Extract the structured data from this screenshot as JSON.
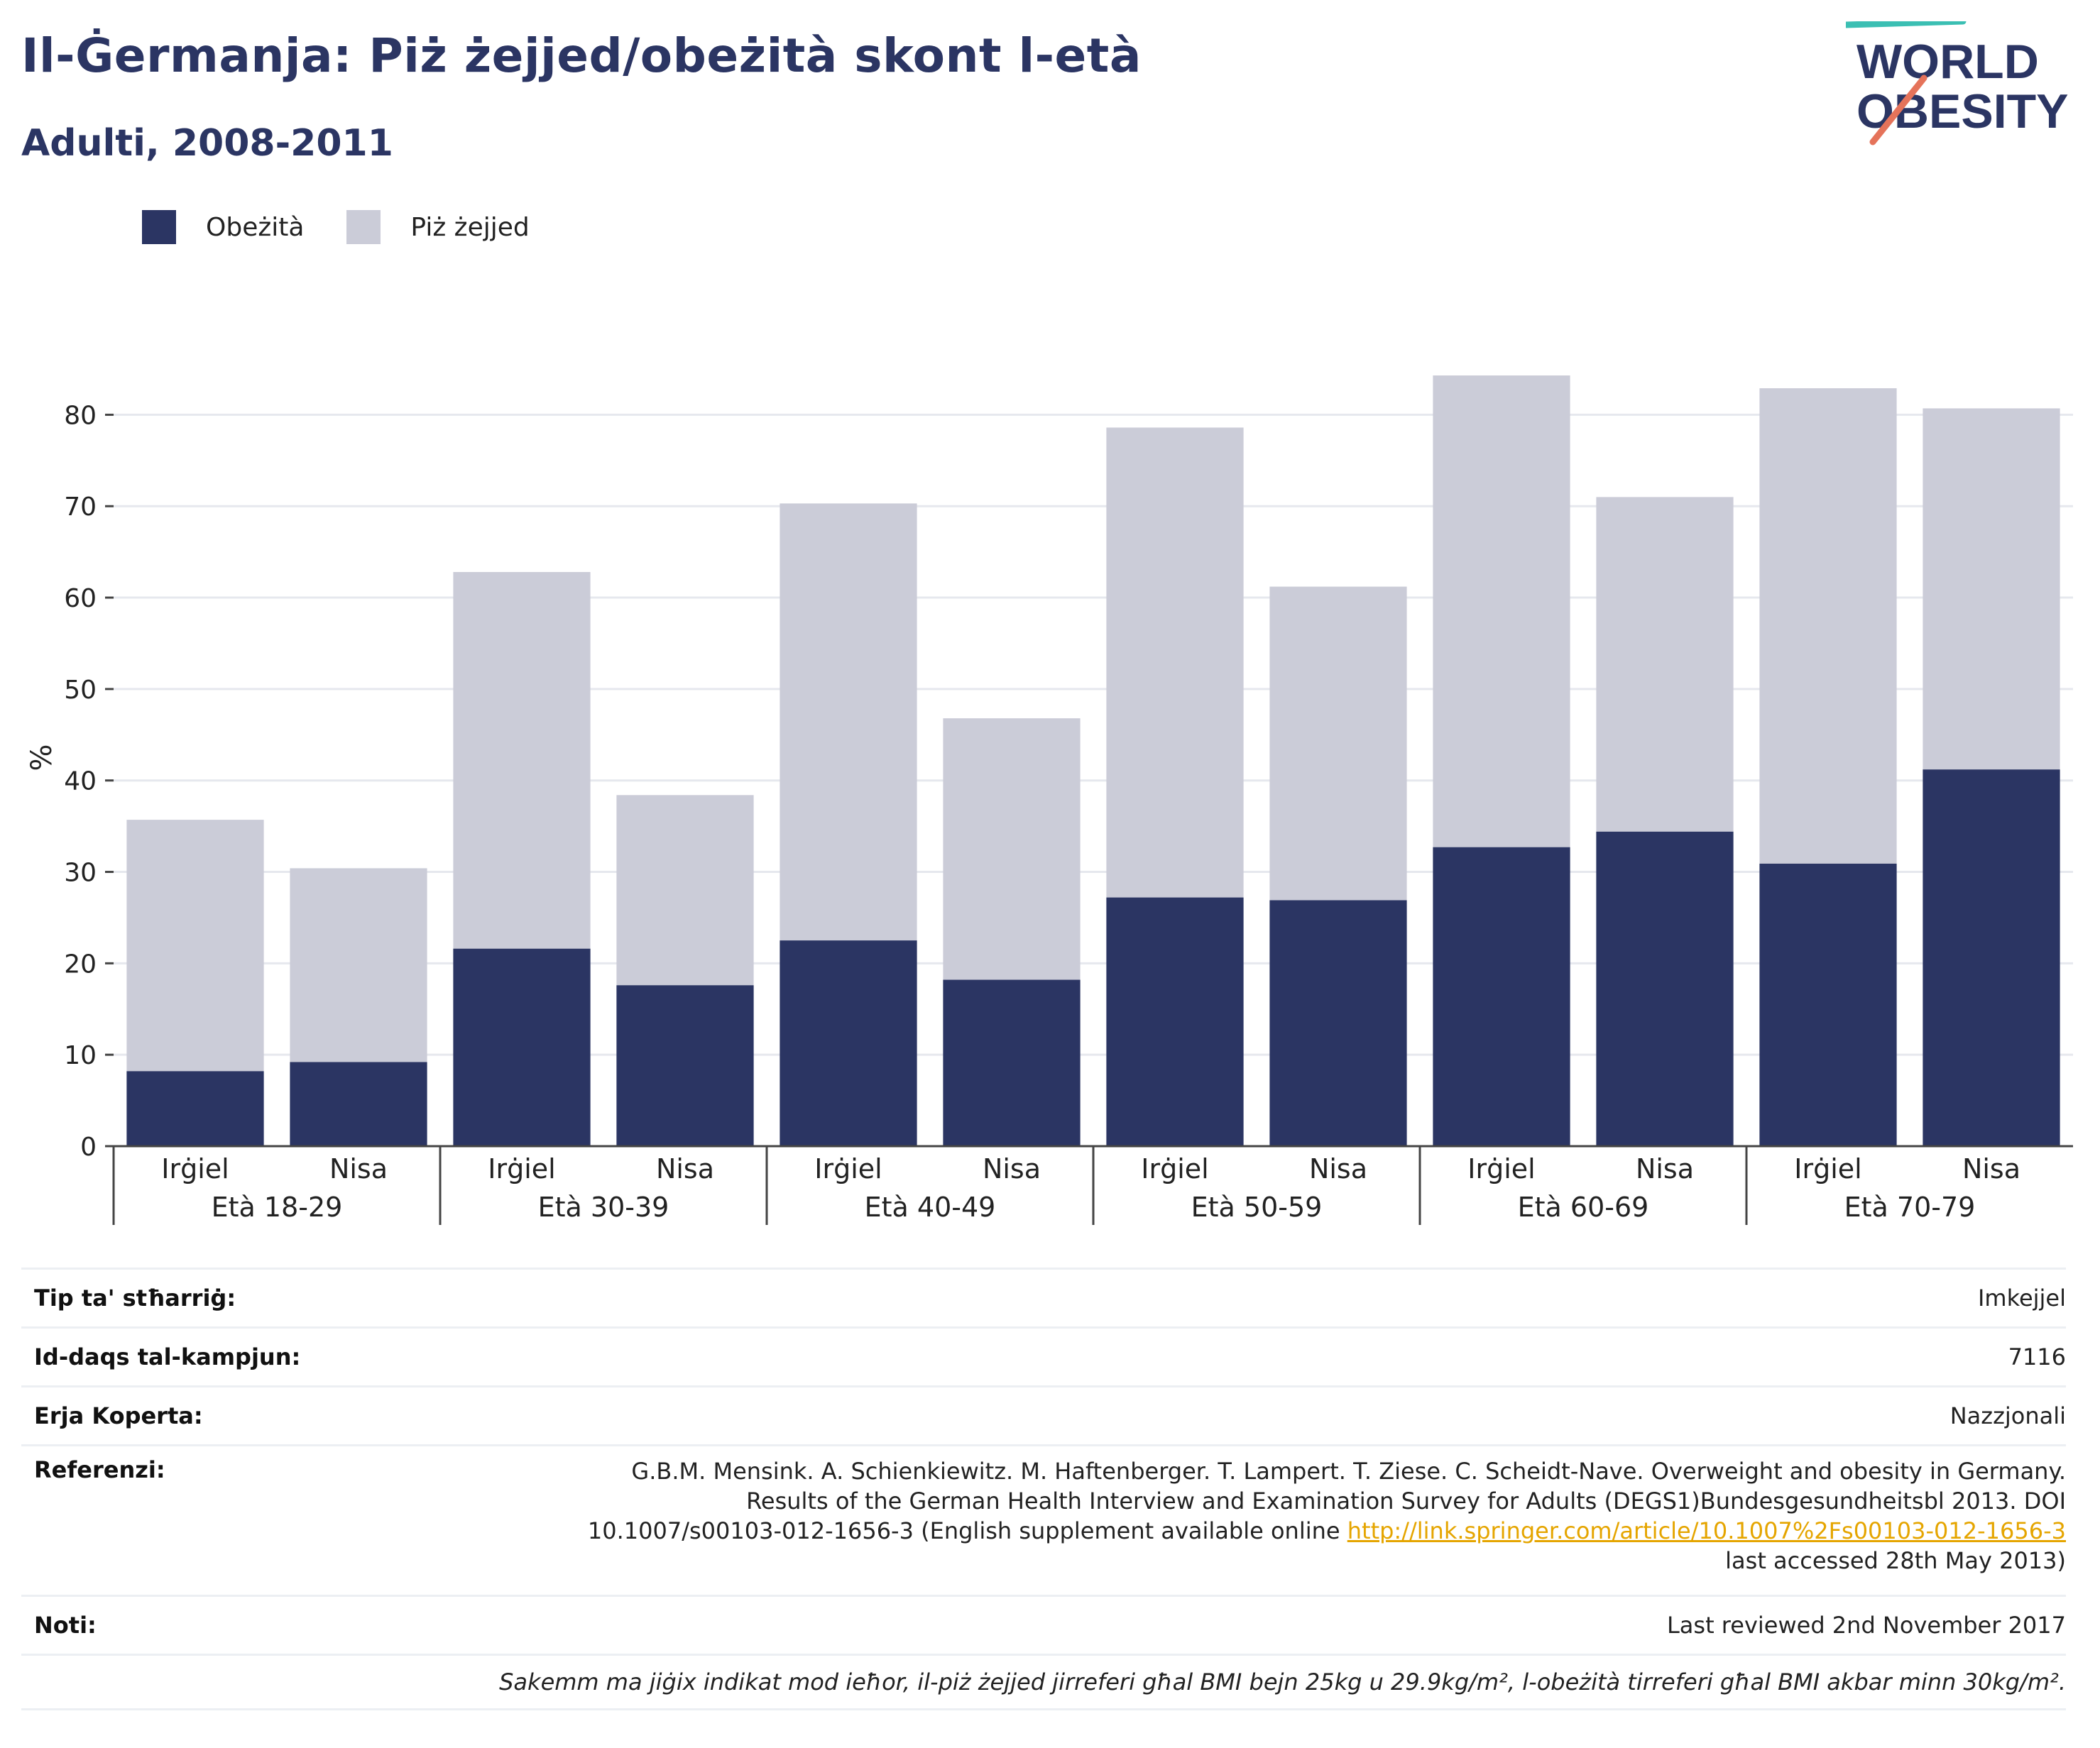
{
  "header": {
    "title": "Il-Ġermanja: Piż żejjed/obeżità skont l-età",
    "subtitle": "Adulti, 2008-2011"
  },
  "logo": {
    "line1": "WORLD",
    "line2": "OBESITY"
  },
  "legend": [
    {
      "label": "Obeżità",
      "color": "#2b3563"
    },
    {
      "label": "Piż żejjed",
      "color": "#cbccd8"
    }
  ],
  "chart_data": {
    "type": "bar",
    "stacked": false,
    "overlay": true,
    "ylabel": "%",
    "xlabel": "",
    "ylim": [
      0,
      85
    ],
    "yticks": [
      0,
      10,
      20,
      30,
      40,
      50,
      60,
      70,
      80
    ],
    "grid": true,
    "legend_position": "top-left",
    "groups": [
      "Età 18-29",
      "Età 30-39",
      "Età 40-49",
      "Età 50-59",
      "Età 60-69",
      "Età 70-79"
    ],
    "subcategories": [
      "Irġiel",
      "Nisa"
    ],
    "series": [
      {
        "name": "Piż żejjed",
        "color": "#cbccd8",
        "values": [
          35.7,
          30.4,
          62.8,
          38.4,
          70.3,
          46.8,
          78.6,
          61.2,
          84.3,
          71.0,
          82.9,
          80.7
        ]
      },
      {
        "name": "Obeżità",
        "color": "#2b3563",
        "values": [
          8.2,
          9.2,
          21.6,
          17.6,
          22.5,
          18.2,
          27.2,
          26.9,
          32.7,
          34.4,
          30.9,
          41.2
        ]
      }
    ]
  },
  "info": {
    "survey_label": "Tip ta' stħarriġ:",
    "survey_value": "Imkejjel",
    "sample_label": "Id-daqs tal-kampjun:",
    "sample_value": "7116",
    "area_label": "Erja Koperta:",
    "area_value": "Nazzjonali",
    "ref_label": "Referenzi:",
    "ref_text_1": "G.B.M. Mensink. A. Schienkiewitz. M. Haftenberger. T. Lampert. T. Ziese. C. Scheidt-Nave. Overweight and obesity in Germany. Results of the German Health Interview and Examination Survey for Adults (DEGS1)Bundesgesundheitsbl 2013. DOI 10.1007/s00103-012-1656-3 (English supplement available online ",
    "ref_link": "http://link.springer.com/article/10.1007%2Fs00103-012-1656-3",
    "ref_text_2": " last accessed 28th May 2013)",
    "notes_label": "Noti:",
    "notes_value": "Last reviewed 2nd November 2017",
    "footnote": "Sakemm ma jiġix indikat mod ieħor, il-piż żejjed jirreferi għal BMI bejn 25kg u 29.9kg/m², l-obeżità tirreferi għal BMI akbar minn 30kg/m²."
  }
}
